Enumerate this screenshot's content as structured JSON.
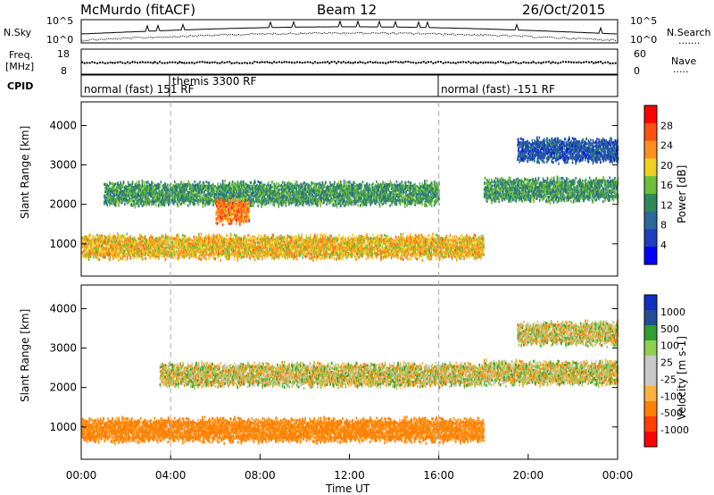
{
  "header": {
    "station": "McMurdo (fitACF)",
    "beam": "Beam 12",
    "date": "26/Oct/2015"
  },
  "status_panels": {
    "noise": {
      "left_label": "N.Sky",
      "right_label": "N.Search",
      "left_ticks": [
        "10^5",
        "10^0"
      ],
      "right_ticks": [
        "10^5",
        "10^0"
      ]
    },
    "freq": {
      "left_label_line1": "Freq.",
      "left_label_line2": "[MHz]",
      "right_label": "Nave",
      "left_ticks": [
        "18",
        "8"
      ],
      "right_ticks": [
        "60",
        "0"
      ]
    },
    "cpid": {
      "label": "CPID",
      "programs": [
        {
          "name": "normal (fast) 151 RF",
          "start_hour": 0
        },
        {
          "name": "themis 3300 RF",
          "start_hour": 4.0
        },
        {
          "name": "normal (fast) -151 RF",
          "start_hour": 16.0
        }
      ]
    }
  },
  "chart_data": [
    {
      "type": "heatmap",
      "panel": "power",
      "ylabel": "Slant Range [km]",
      "xlabel": "",
      "xlim": [
        0,
        24
      ],
      "ylim": [
        180,
        4600
      ],
      "yticks": [
        "1000",
        "2000",
        "3000",
        "4000"
      ],
      "colorbar": {
        "label": "Power [dB]",
        "ticks": [
          "28",
          "24",
          "20",
          "16",
          "12",
          "8",
          "4"
        ],
        "range": [
          0,
          30
        ]
      },
      "echo_bands": [
        {
          "start_hour": 0.0,
          "end_hour": 18.0,
          "range_center_km": 950,
          "power_db": 20
        },
        {
          "start_hour": 1.0,
          "end_hour": 16.0,
          "range_center_km": 2300,
          "power_db": 12
        },
        {
          "start_hour": 6.0,
          "end_hour": 7.5,
          "range_center_km": 1850,
          "power_db": 24
        },
        {
          "start_hour": 18.0,
          "end_hour": 24.0,
          "range_center_km": 2400,
          "power_db": 12
        },
        {
          "start_hour": 19.5,
          "end_hour": 24.0,
          "range_center_km": 3400,
          "power_db": 6
        }
      ]
    },
    {
      "type": "heatmap",
      "panel": "velocity",
      "ylabel": "Slant Range [km]",
      "xlabel": "Time UT",
      "xlim": [
        0,
        24
      ],
      "ylim": [
        180,
        4600
      ],
      "xticks": [
        "00:00",
        "04:00",
        "08:00",
        "12:00",
        "16:00",
        "20:00",
        "00:00"
      ],
      "yticks": [
        "1000",
        "2000",
        "3000",
        "4000"
      ],
      "colorbar": {
        "label": "Velocity [m s-1]",
        "ticks": [
          "1000",
          "500",
          "100",
          "25",
          "-25",
          "-100",
          "-500",
          "-1000"
        ]
      },
      "echo_bands": [
        {
          "start_hour": 0.0,
          "end_hour": 18.0,
          "range_center_km": 950,
          "velocity_ms": -200
        },
        {
          "start_hour": 3.5,
          "end_hour": 18.0,
          "range_center_km": 2350,
          "velocity_ms": 0
        },
        {
          "start_hour": 18.0,
          "end_hour": 24.0,
          "range_center_km": 2400,
          "velocity_ms": 0
        },
        {
          "start_hour": 19.5,
          "end_hour": 24.0,
          "range_center_km": 3400,
          "velocity_ms": 0
        }
      ]
    }
  ],
  "colors": {
    "power_scale": [
      "#0000ff",
      "#1f3fbf",
      "#2a6a9a",
      "#2f8a5a",
      "#6cbf3a",
      "#f0d020",
      "#ff9020",
      "#ff5010",
      "#ff0000"
    ],
    "velocity_scale": [
      "#ff0000",
      "#ff4000",
      "#ff8000",
      "#ffb040",
      "#c8c8c8",
      "#c8c8c8",
      "#90d050",
      "#30a030",
      "#205090",
      "#1030c0"
    ]
  }
}
